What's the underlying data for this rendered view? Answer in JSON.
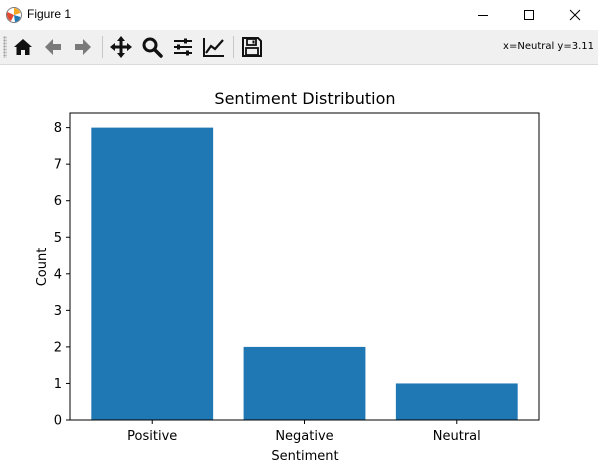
{
  "window": {
    "title": "Figure 1",
    "app_icon": "matplotlib-figure-icon",
    "controls": [
      "minimize-icon",
      "maximize-icon",
      "close-icon"
    ]
  },
  "toolbar": {
    "buttons": [
      "home-icon",
      "back-arrow-icon",
      "forward-arrow-icon",
      "pan-icon",
      "zoom-icon",
      "configure-subplots-icon",
      "edit-axis-icon",
      "save-icon"
    ],
    "coordinates": "x=Neutral y=3.11"
  },
  "chart_data": {
    "type": "bar",
    "title": "Sentiment Distribution",
    "xlabel": "Sentiment",
    "ylabel": "Count",
    "categories": [
      "Positive",
      "Negative",
      "Neutral"
    ],
    "values": [
      8,
      2,
      1
    ],
    "ylim": [
      0,
      8.4
    ],
    "yticks": [
      "0",
      "1",
      "2",
      "3",
      "4",
      "5",
      "6",
      "7",
      "8"
    ],
    "bar_color": "#1f77b4",
    "grid": false
  }
}
